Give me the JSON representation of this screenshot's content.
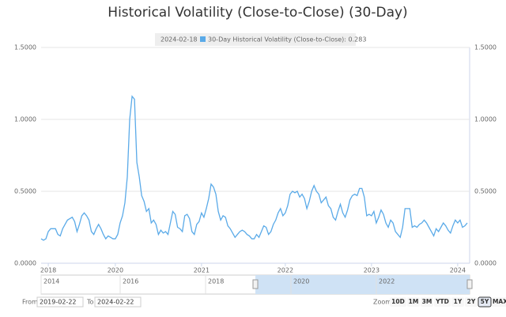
{
  "chart_data": {
    "type": "line",
    "title": "Historical Volatility (Close-to-Close) (30-Day)",
    "tooltip": {
      "date": "2024-02-18",
      "text": "30-Day Historical Volatility (Close-to-Close): 0.283"
    },
    "series": [
      {
        "name": "30-Day Historical Volatility (Close-to-Close)",
        "color": "#5aaae8",
        "values": [
          0.17,
          0.16,
          0.17,
          0.22,
          0.24,
          0.24,
          0.24,
          0.2,
          0.19,
          0.24,
          0.27,
          0.3,
          0.31,
          0.32,
          0.29,
          0.22,
          0.27,
          0.33,
          0.35,
          0.33,
          0.3,
          0.22,
          0.2,
          0.24,
          0.27,
          0.24,
          0.2,
          0.17,
          0.19,
          0.18,
          0.17,
          0.17,
          0.2,
          0.28,
          0.33,
          0.42,
          0.6,
          1.0,
          1.16,
          1.14,
          0.7,
          0.6,
          0.47,
          0.43,
          0.36,
          0.38,
          0.28,
          0.3,
          0.27,
          0.2,
          0.23,
          0.21,
          0.22,
          0.2,
          0.28,
          0.36,
          0.34,
          0.25,
          0.24,
          0.22,
          0.33,
          0.34,
          0.31,
          0.22,
          0.2,
          0.27,
          0.29,
          0.35,
          0.32,
          0.38,
          0.45,
          0.55,
          0.53,
          0.48,
          0.36,
          0.3,
          0.33,
          0.32,
          0.26,
          0.24,
          0.21,
          0.18,
          0.2,
          0.22,
          0.23,
          0.22,
          0.2,
          0.19,
          0.17,
          0.17,
          0.2,
          0.18,
          0.22,
          0.26,
          0.25,
          0.2,
          0.22,
          0.27,
          0.3,
          0.35,
          0.38,
          0.33,
          0.35,
          0.4,
          0.48,
          0.5,
          0.49,
          0.5,
          0.46,
          0.48,
          0.45,
          0.38,
          0.43,
          0.5,
          0.54,
          0.5,
          0.48,
          0.42,
          0.44,
          0.46,
          0.4,
          0.38,
          0.32,
          0.3,
          0.36,
          0.41,
          0.35,
          0.32,
          0.37,
          0.44,
          0.47,
          0.48,
          0.47,
          0.52,
          0.52,
          0.46,
          0.33,
          0.34,
          0.33,
          0.36,
          0.28,
          0.32,
          0.37,
          0.34,
          0.28,
          0.25,
          0.3,
          0.28,
          0.22,
          0.2,
          0.18,
          0.25,
          0.38,
          0.38,
          0.38,
          0.25,
          0.26,
          0.25,
          0.27,
          0.28,
          0.3,
          0.28,
          0.25,
          0.22,
          0.19,
          0.24,
          0.22,
          0.25,
          0.28,
          0.26,
          0.23,
          0.21,
          0.26,
          0.3,
          0.28,
          0.3,
          0.25,
          0.26,
          0.28
        ]
      }
    ],
    "xlim": [
      0,
      178
    ],
    "xticks": [
      {
        "value": 3,
        "label": "2018"
      },
      {
        "value": 31,
        "label": "2020"
      },
      {
        "value": 67,
        "label": "2021"
      },
      {
        "value": 102,
        "label": "2022"
      },
      {
        "value": 138,
        "label": "2023"
      },
      {
        "value": 174,
        "label": "2024"
      }
    ],
    "ylim": [
      0,
      1.5
    ],
    "yticks": [
      {
        "value": 0,
        "label": "0.0000"
      },
      {
        "value": 0.5,
        "label": "0.5000"
      },
      {
        "value": 1,
        "label": "1.0000"
      },
      {
        "value": 1.5,
        "label": "1.5000"
      }
    ],
    "grid": true,
    "navigator": {
      "labels": [
        "2014",
        "2016",
        "2018",
        "2020",
        "2022"
      ]
    },
    "range_selector": {
      "zoom_label": "Zoom",
      "buttons": [
        "10D",
        "1M",
        "3M",
        "YTD",
        "1Y",
        "2Y",
        "5Y",
        "MAX"
      ],
      "selected": 6,
      "from_label": "From",
      "from": "2019-02-22",
      "to_label": "To",
      "to": "2024-02-22"
    }
  }
}
